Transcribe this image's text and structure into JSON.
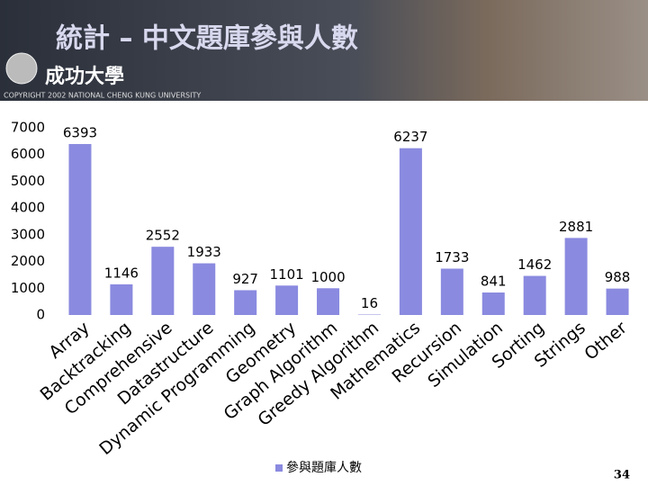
{
  "header": {
    "title": "統計 – 中文題庫參與人數",
    "logo_text": "成功大學",
    "copyright": "COPYRIGHT 2002 NATIONAL CHENG KUNG UNIVERSITY"
  },
  "page_number": 34,
  "chart_data": {
    "type": "bar",
    "categories": [
      "Array",
      "Backtracking",
      "Comprehensive",
      "Datastructure",
      "Dynamic Programming",
      "Geometry",
      "Graph Algorithm",
      "Greedy Algorithm",
      "Mathematics",
      "Recursion",
      "Simulation",
      "Sorting",
      "Strings",
      "Other"
    ],
    "series": [
      {
        "name": "參與題庫人數",
        "color": "#8a8ae0",
        "values": [
          6393,
          1146,
          2552,
          1933,
          927,
          1101,
          1000,
          16,
          6237,
          1733,
          841,
          1462,
          2881,
          988
        ]
      }
    ],
    "ylim": [
      0,
      7000
    ],
    "yticks": [
      0,
      1000,
      2000,
      3000,
      4000,
      5000,
      6000,
      7000
    ],
    "grid": false,
    "legend": "bottom"
  }
}
